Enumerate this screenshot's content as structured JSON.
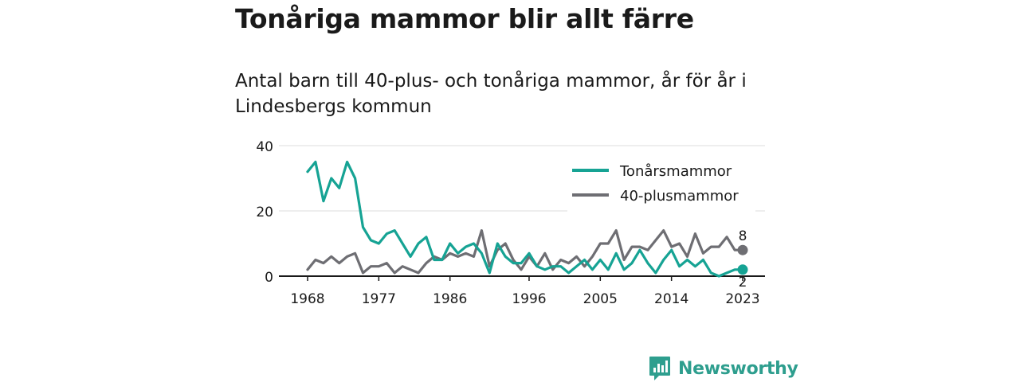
{
  "header": {
    "title": "Tonåriga mammor blir allt färre",
    "subtitle": "Antal barn till 40-plus- och tonåriga mammor, år för år i Lindesbergs kommun"
  },
  "branding": {
    "name": "Newsworthy",
    "color": "#2e9e8e",
    "icon": "bar-chart-speech-bubble-icon"
  },
  "chart_data": {
    "type": "line",
    "title": "Tonåriga mammor blir allt färre",
    "subtitle": "Antal barn till 40-plus- och tonåriga mammor, år för år i Lindesbergs kommun",
    "xlabel": "",
    "ylabel": "",
    "xlim": [
      1968,
      2023
    ],
    "ylim": [
      0,
      40
    ],
    "x_ticks": [
      1968,
      1977,
      1986,
      1996,
      2005,
      2014,
      2023
    ],
    "y_ticks": [
      0,
      20,
      40
    ],
    "grid": "horizontal",
    "legend_position": "top-right",
    "x": [
      1968,
      1969,
      1970,
      1971,
      1972,
      1973,
      1974,
      1975,
      1976,
      1977,
      1978,
      1979,
      1980,
      1981,
      1982,
      1983,
      1984,
      1985,
      1986,
      1987,
      1988,
      1989,
      1990,
      1991,
      1992,
      1993,
      1994,
      1995,
      1996,
      1997,
      1998,
      1999,
      2000,
      2001,
      2002,
      2003,
      2004,
      2005,
      2006,
      2007,
      2008,
      2009,
      2010,
      2011,
      2012,
      2013,
      2014,
      2015,
      2016,
      2017,
      2018,
      2019,
      2020,
      2021,
      2022,
      2023
    ],
    "series": [
      {
        "name": "Tonårsmammor",
        "color": "#16a394",
        "end_label": "2",
        "values": [
          32,
          35,
          23,
          30,
          27,
          35,
          30,
          15,
          11,
          10,
          13,
          14,
          10,
          6,
          10,
          12,
          5,
          5,
          10,
          7,
          9,
          10,
          7,
          1,
          10,
          6,
          4,
          4,
          7,
          3,
          2,
          3,
          3,
          1,
          3,
          5,
          2,
          5,
          2,
          7,
          2,
          4,
          8,
          4,
          1,
          5,
          8,
          3,
          5,
          3,
          5,
          1,
          0,
          1,
          2,
          2
        ]
      },
      {
        "name": "40-plusmammor",
        "color": "#6e6e73",
        "end_label": "8",
        "values": [
          2,
          5,
          4,
          6,
          4,
          6,
          7,
          1,
          3,
          3,
          4,
          1,
          3,
          2,
          1,
          4,
          6,
          5,
          7,
          6,
          7,
          6,
          14,
          3,
          8,
          10,
          5,
          2,
          6,
          3,
          7,
          2,
          5,
          4,
          6,
          3,
          6,
          10,
          10,
          14,
          5,
          9,
          9,
          8,
          11,
          14,
          9,
          10,
          6,
          13,
          7,
          9,
          9,
          12,
          8,
          8
        ]
      }
    ]
  }
}
